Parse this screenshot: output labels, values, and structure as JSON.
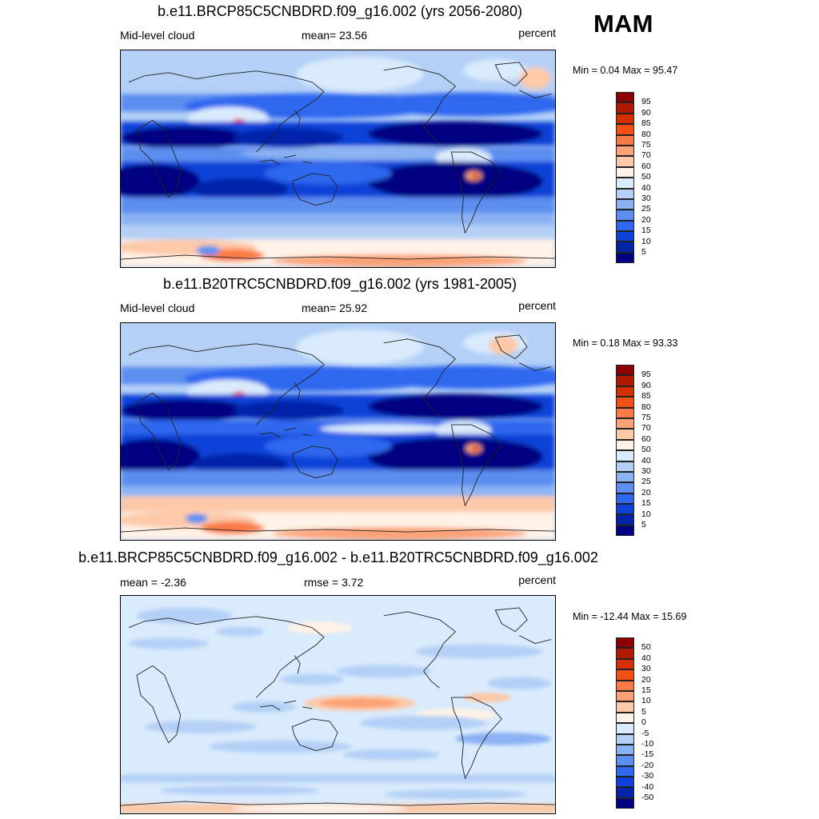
{
  "season": "MAM",
  "panels": [
    {
      "title": "b.e11.BRCP85C5CNBDRD.f09_g16.002 (yrs 2056-2080)",
      "left_label": "Mid-level cloud",
      "mid_label": "mean=  23.56",
      "right_label": "percent",
      "minmax": "Min =   0.04 Max =  95.47",
      "legend": {
        "labels": [
          "95",
          "90",
          "85",
          "80",
          "75",
          "70",
          "60",
          "50",
          "40",
          "30",
          "25",
          "20",
          "15",
          "10",
          "5"
        ],
        "colors": [
          "#8b0000",
          "#b01a00",
          "#d42f00",
          "#f25016",
          "#fb7a45",
          "#fca276",
          "#fdc9a8",
          "#fff2e6",
          "#d9ebfc",
          "#b4d0f7",
          "#8bb2f3",
          "#5c8ef0",
          "#2e68ef",
          "#0e42d8",
          "#0424a8",
          "#000080"
        ]
      }
    },
    {
      "title": "b.e11.B20TRC5CNBDRD.f09_g16.002 (yrs 1981-2005)",
      "left_label": "Mid-level cloud",
      "mid_label": "mean=  25.92",
      "right_label": "percent",
      "minmax": "Min =   0.18 Max =  93.33",
      "legend": {
        "labels": [
          "95",
          "90",
          "85",
          "80",
          "75",
          "70",
          "60",
          "50",
          "40",
          "30",
          "25",
          "20",
          "15",
          "10",
          "5"
        ],
        "colors": [
          "#8b0000",
          "#b01a00",
          "#d42f00",
          "#f25016",
          "#fb7a45",
          "#fca276",
          "#fdc9a8",
          "#fff2e6",
          "#d9ebfc",
          "#b4d0f7",
          "#8bb2f3",
          "#5c8ef0",
          "#2e68ef",
          "#0e42d8",
          "#0424a8",
          "#000080"
        ]
      }
    },
    {
      "title": "b.e11.BRCP85C5CNBDRD.f09_g16.002 - b.e11.B20TRC5CNBDRD.f09_g16.002",
      "left_label": "mean =  -2.36",
      "mid_label": "rmse =   3.72",
      "right_label": "percent",
      "minmax": "Min = -12.44 Max =  15.69",
      "legend": {
        "labels": [
          "50",
          "40",
          "30",
          "20",
          "15",
          "10",
          "5",
          "0",
          "-5",
          "-10",
          "-15",
          "-20",
          "-30",
          "-40",
          "-50"
        ],
        "colors": [
          "#8b0000",
          "#b01a00",
          "#d42f00",
          "#f25016",
          "#fb7a45",
          "#fca276",
          "#fdc9a8",
          "#fff2e6",
          "#d9ebfc",
          "#b4d0f7",
          "#8bb2f3",
          "#5c8ef0",
          "#2e68ef",
          "#0e42d8",
          "#0424a8",
          "#000080"
        ]
      }
    }
  ]
}
